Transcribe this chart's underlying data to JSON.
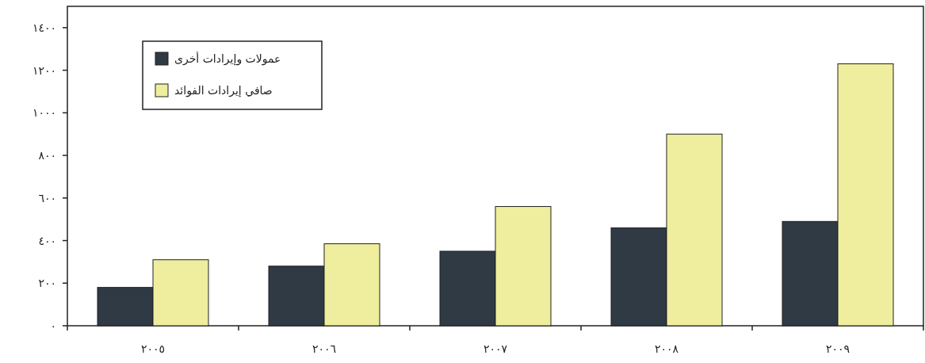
{
  "chart_data": {
    "type": "bar",
    "categories": [
      "٢٠٠٥",
      "٢٠٠٦",
      "٢٠٠٧",
      "٢٠٠٨",
      "٢٠٠٩"
    ],
    "series": [
      {
        "name": "عمولات وإيرادات أخرى",
        "color": "#2f3a45",
        "values": [
          180,
          280,
          350,
          460,
          490
        ]
      },
      {
        "name": "صافي إيرادات الفوائد",
        "color": "#eeee9e",
        "values": [
          310,
          385,
          560,
          900,
          1230
        ]
      }
    ],
    "ylim": [
      0,
      1500
    ],
    "yticks": [
      {
        "value": 0,
        "label": "٠"
      },
      {
        "value": 200,
        "label": "٢٠٠"
      },
      {
        "value": 400,
        "label": "٤٠٠"
      },
      {
        "value": 600,
        "label": "٦٠٠"
      },
      {
        "value": 800,
        "label": "٨٠٠"
      },
      {
        "value": 1000,
        "label": "١٠٠٠"
      },
      {
        "value": 1200,
        "label": "١٢٠٠"
      },
      {
        "value": 1400,
        "label": "١٤٠٠"
      }
    ],
    "legend": "top left"
  }
}
